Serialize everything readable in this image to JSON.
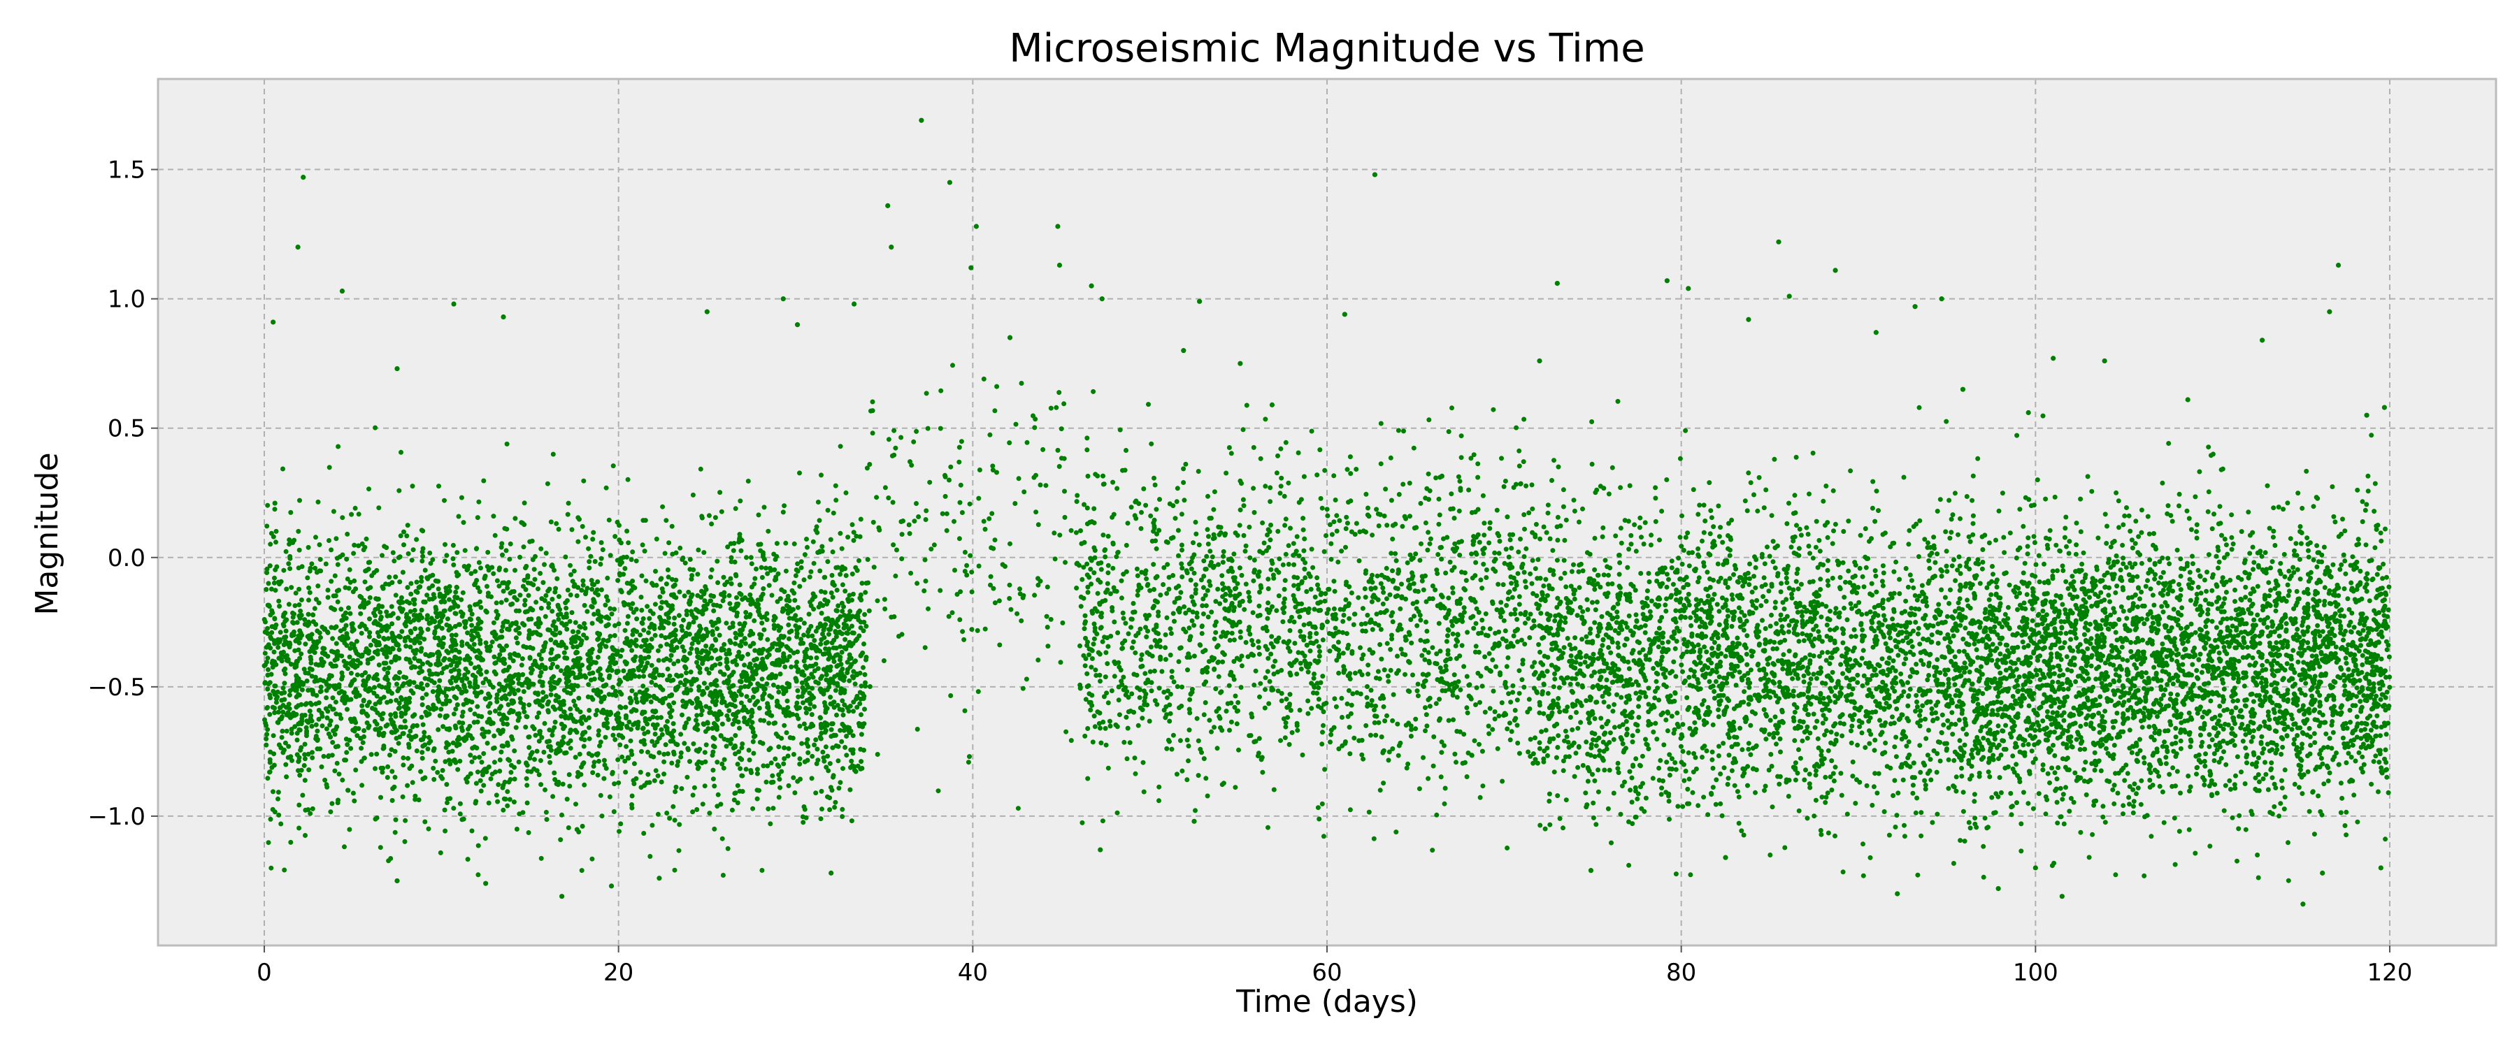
{
  "chart_data": {
    "type": "scatter",
    "title": "Microseismic Magnitude vs Time",
    "xlabel": "Time (days)",
    "ylabel": "Magnitude",
    "xlim": [
      -6,
      126
    ],
    "ylim": [
      -1.5,
      1.85
    ],
    "xticks": [
      0,
      20,
      40,
      60,
      80,
      100,
      120
    ],
    "xtick_labels": [
      "0",
      "20",
      "40",
      "60",
      "80",
      "100",
      "120"
    ],
    "yticks": [
      -1.0,
      -0.5,
      0.0,
      0.5,
      1.0,
      1.5
    ],
    "ytick_labels": [
      "−1.0",
      "−0.5",
      "0.0",
      "0.5",
      "1.0",
      "1.5"
    ],
    "grid": true,
    "legend": false,
    "colors": {
      "points": "#008000",
      "plot_background": "#eeeeee",
      "grid": "#b0b0b0",
      "axes_edge": "#bcbcbc"
    },
    "series": [
      {
        "color": "#008000",
        "x": [
          0.5,
          0.6,
          1.9,
          2.2,
          4.4,
          7.5,
          10.7,
          13.5,
          25.0,
          29.3,
          30.1,
          33.3,
          35.2,
          35.4,
          37.1,
          38.7,
          39.9,
          40.2,
          42.1,
          44.8,
          44.9,
          46.7,
          47.3,
          51.9,
          52.8,
          55.1,
          56.9,
          61.0,
          62.7,
          72.0,
          73.0,
          79.2,
          80.4,
          83.8,
          85.5,
          86.1,
          88.7,
          91.0,
          93.2,
          94.7,
          95.9,
          99.6,
          101.0,
          103.9,
          108.6,
          112.8,
          116.6,
          117.1,
          118.7,
          119.7,
          7.5,
          12.5,
          16.8,
          19.6,
          22.3,
          32.0,
          47.2,
          52.5,
          74.9,
          82.5,
          92.2,
          97.9,
          100.0,
          101.5,
          115.1,
          116.2,
          119.5
        ],
        "y": [
          0.91,
          0.21,
          1.2,
          1.47,
          1.03,
          0.73,
          0.98,
          0.93,
          0.95,
          1.0,
          0.9,
          0.98,
          1.36,
          1.2,
          1.69,
          1.45,
          1.12,
          1.28,
          0.85,
          1.28,
          1.13,
          1.05,
          1.0,
          0.8,
          0.99,
          0.75,
          0.59,
          0.94,
          1.48,
          0.76,
          1.06,
          1.07,
          1.04,
          0.92,
          1.22,
          1.01,
          1.11,
          0.87,
          0.97,
          1.0,
          0.65,
          0.56,
          0.77,
          0.76,
          0.61,
          0.84,
          0.95,
          1.13,
          0.55,
          0.58,
          -1.25,
          -1.26,
          -1.31,
          -1.27,
          -1.24,
          -1.22,
          -1.13,
          -1.02,
          -1.21,
          -1.16,
          -1.3,
          -1.28,
          -1.2,
          -1.31,
          -1.34,
          -1.22,
          -1.2
        ]
      }
    ]
  }
}
